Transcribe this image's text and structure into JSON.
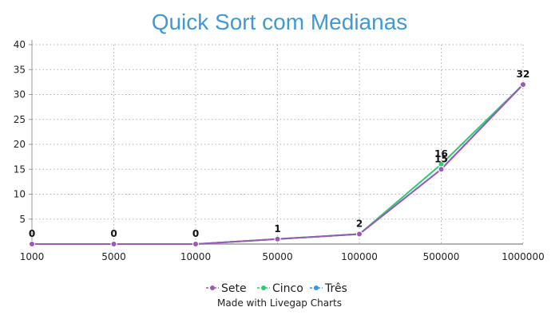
{
  "chart_data": {
    "type": "line",
    "title": "Quick Sort com Medianas",
    "categories": [
      "1000",
      "5000",
      "10000",
      "50000",
      "100000",
      "500000",
      "1000000"
    ],
    "y_ticks": [
      5,
      10,
      15,
      20,
      25,
      30,
      35,
      40
    ],
    "ylim": [
      0,
      40
    ],
    "grid": true,
    "legend_position": "bottom-center",
    "series": [
      {
        "name": "Sete",
        "color": "#9b59b6",
        "values": [
          0,
          0,
          0,
          1,
          2,
          15,
          32
        ]
      },
      {
        "name": "Cinco",
        "color": "#2ecc71",
        "values": [
          0,
          0,
          0,
          1,
          2,
          16,
          32
        ]
      },
      {
        "name": "Três",
        "color": "#3498db",
        "values": [
          0,
          0,
          0,
          1,
          2,
          15,
          32
        ]
      }
    ],
    "data_labels": [
      {
        "category_index": 0,
        "text": "0"
      },
      {
        "category_index": 1,
        "text": "0"
      },
      {
        "category_index": 2,
        "text": "0"
      },
      {
        "category_index": 3,
        "text": "1"
      },
      {
        "category_index": 4,
        "text": "2"
      },
      {
        "category_index": 5,
        "text": "16",
        "series_index": 1
      },
      {
        "category_index": 5,
        "text": "15",
        "series_index": 0
      },
      {
        "category_index": 6,
        "text": "32"
      }
    ],
    "credit": "Made with Livegap Charts"
  }
}
